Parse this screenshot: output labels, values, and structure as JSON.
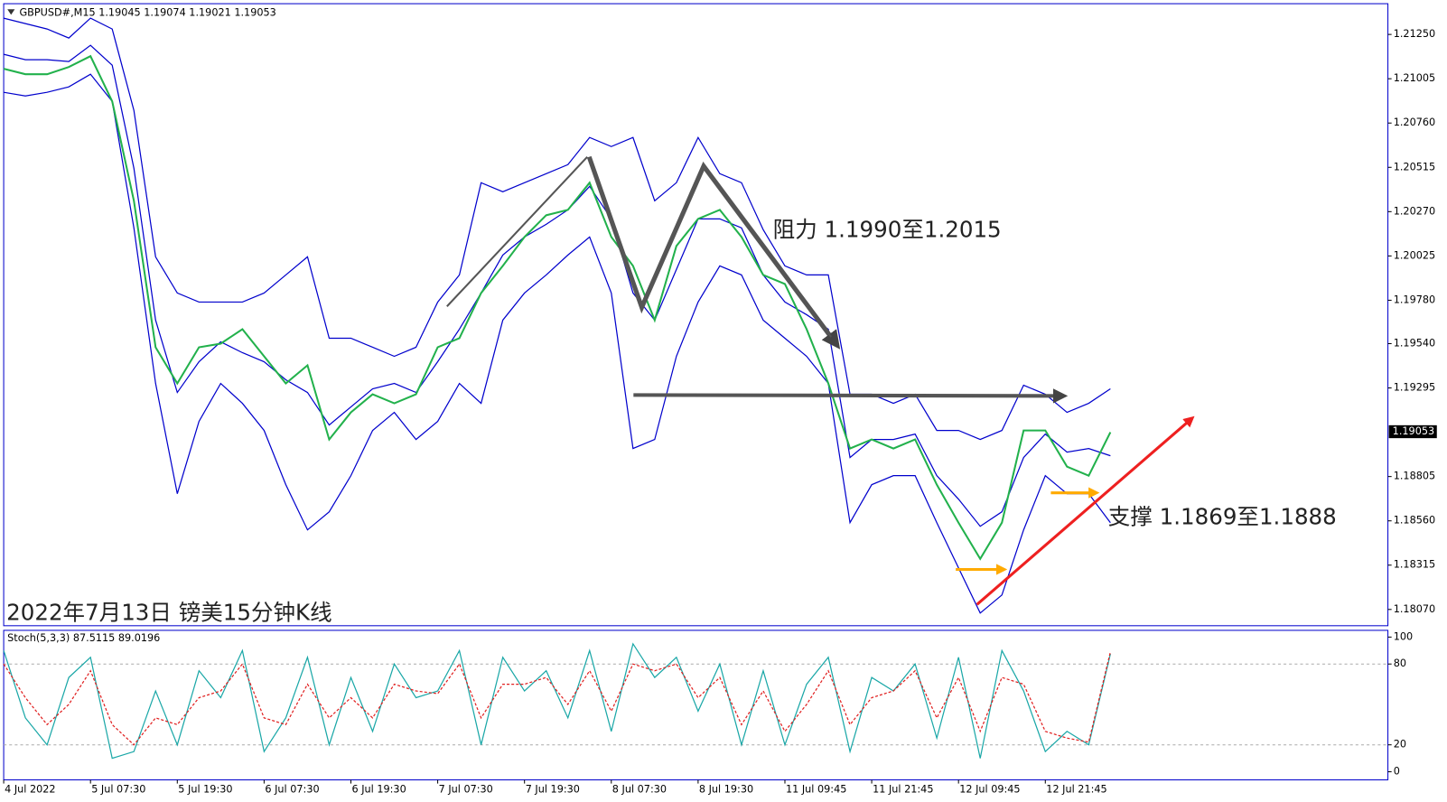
{
  "header": "GBPUSD#,M15  1.19045 1.19074 1.19021 1.19053",
  "annotations": [
    "阻力 1.1990至1.2015",
    "支撑 1.1869至1.1888",
    "2022年7月13日 镑美15分钟K线"
  ],
  "chart_data": [
    {
      "type": "line",
      "categories": [
        "4 Jul 2022",
        null,
        null,
        null,
        "5 Jul 07:30",
        null,
        null,
        null,
        "5 Jul 19:30",
        null,
        null,
        null,
        "6 Jul 07:30",
        null,
        null,
        null,
        "6 Jul 19:30",
        null,
        null,
        null,
        "7 Jul 07:30",
        null,
        null,
        null,
        "7 Jul 19:30",
        null,
        null,
        null,
        "8 Jul 07:30",
        null,
        null,
        null,
        "8 Jul 19:30",
        null,
        null,
        null,
        "11 Jul 09:45",
        null,
        null,
        null,
        "11 Jul 21:45",
        null,
        null,
        null,
        "12 Jul 09:45",
        null,
        null,
        null,
        "12 Jul 21:45",
        null,
        null,
        null
      ],
      "series": [
        {
          "color": "#0000cc",
          "values": [
            1.2134,
            1.2131,
            1.2128,
            1.2123,
            1.2134,
            1.2128,
            1.2083,
            1.2002,
            1.1982,
            1.1977,
            1.1977,
            1.1977,
            1.1982,
            1.1992,
            1.2002,
            1.1957,
            1.1957,
            1.1952,
            1.1947,
            1.1952,
            1.1977,
            1.1992,
            1.2043,
            1.2038,
            1.2043,
            1.2048,
            1.2053,
            1.2068,
            1.2063,
            1.2068,
            1.2033,
            1.2043,
            1.2068,
            1.2048,
            1.2043,
            1.2017,
            1.1997,
            1.1992,
            1.1992,
            1.1926,
            1.1926,
            1.1921,
            1.1926,
            1.1906,
            1.1906,
            1.1901,
            1.1906,
            1.1931,
            1.1926,
            1.1916,
            1.1921,
            1.1929
          ]
        },
        {
          "color": "#0000cc",
          "values": [
            1.2114,
            1.2111,
            1.2111,
            1.211,
            1.2119,
            1.2108,
            1.2051,
            1.1967,
            1.1927,
            1.1944,
            1.1955,
            1.1949,
            1.1944,
            1.1934,
            1.1927,
            1.1909,
            1.1919,
            1.1929,
            1.1932,
            1.1927,
            1.1944,
            1.1962,
            1.1982,
            1.2003,
            1.2013,
            1.202,
            1.2028,
            1.2041,
            1.2023,
            1.1982,
            1.1967,
            1.1995,
            1.2023,
            1.2023,
            1.2018,
            1.1992,
            1.1977,
            1.197,
            1.1962,
            1.1891,
            1.1901,
            1.1901,
            1.1904,
            1.1881,
            1.1868,
            1.1853,
            1.1861,
            1.1891,
            1.1904,
            1.1894,
            1.1896,
            1.1892
          ]
        },
        {
          "color": "#0000cc",
          "values": [
            1.2093,
            1.2091,
            1.2093,
            1.2096,
            1.2103,
            1.2088,
            1.2018,
            1.1932,
            1.1871,
            1.1911,
            1.1932,
            1.1921,
            1.1906,
            1.1876,
            1.1851,
            1.1861,
            1.1881,
            1.1906,
            1.1916,
            1.1901,
            1.1911,
            1.1932,
            1.1921,
            1.1967,
            1.1982,
            1.1992,
            1.2003,
            1.2013,
            1.1982,
            1.1896,
            1.1901,
            1.1947,
            1.1977,
            1.1997,
            1.1992,
            1.1967,
            1.1957,
            1.1947,
            1.1932,
            1.1855,
            1.1876,
            1.1881,
            1.1881,
            1.1855,
            1.183,
            1.1805,
            1.1815,
            1.1851,
            1.1881,
            1.1871,
            1.1871,
            1.1855
          ]
        },
        {
          "color": "#22b14c",
          "values": [
            1.2106,
            1.2103,
            1.2103,
            1.2107,
            1.2113,
            1.2088,
            1.2033,
            1.1952,
            1.1932,
            1.1952,
            1.1954,
            1.1962,
            1.1947,
            1.1932,
            1.1942,
            1.1901,
            1.1916,
            1.1926,
            1.1921,
            1.1926,
            1.1952,
            1.1957,
            1.1982,
            1.1997,
            1.2013,
            1.2025,
            1.2028,
            1.2043,
            1.2013,
            1.1997,
            1.1967,
            1.2008,
            1.2023,
            1.2028,
            1.2013,
            1.1992,
            1.1987,
            1.1962,
            1.1932,
            1.1896,
            1.1901,
            1.1896,
            1.1901,
            1.1876,
            1.1855,
            1.1835,
            1.1855,
            1.1906,
            1.1906,
            1.1886,
            1.1881,
            1.1905
          ]
        }
      ],
      "ylim": [
        1.1798,
        1.2142
      ],
      "yticks": [
        {
          "value": 1.2125,
          "label": "1.21250"
        },
        1.21005,
        {
          "value": 1.2076,
          "label": "1.20760"
        },
        1.20515,
        {
          "value": 1.2027,
          "label": "1.20270"
        },
        1.20025,
        {
          "value": 1.1978,
          "label": "1.19780"
        },
        {
          "value": 1.1954,
          "label": "1.19540"
        },
        1.19295,
        1.18805,
        {
          "value": 1.1856,
          "label": "1.18560"
        },
        1.18315,
        {
          "value": 1.1807,
          "label": "1.18070"
        }
      ],
      "current_price": 1.19053
    },
    {
      "type": "line",
      "title": "Stoch(5,3,3) 87.5115 89.0196",
      "series": [
        {
          "color": "#1aa7a7",
          "values": [
            90,
            40,
            20,
            70,
            85,
            10,
            15,
            60,
            20,
            75,
            55,
            90,
            15,
            40,
            85,
            20,
            70,
            30,
            80,
            55,
            60,
            90,
            20,
            85,
            60,
            75,
            40,
            90,
            30,
            95,
            70,
            85,
            45,
            80,
            20,
            75,
            20,
            65,
            85,
            15,
            70,
            60,
            80,
            25,
            85,
            10,
            90,
            60,
            15,
            30,
            20,
            87.5115
          ]
        },
        {
          "color": "#e02020",
          "dashed": true,
          "values": [
            80,
            55,
            35,
            50,
            75,
            35,
            20,
            40,
            35,
            55,
            60,
            80,
            40,
            35,
            65,
            40,
            55,
            40,
            65,
            60,
            58,
            80,
            40,
            65,
            65,
            70,
            50,
            75,
            45,
            80,
            75,
            80,
            55,
            70,
            35,
            60,
            30,
            50,
            75,
            35,
            55,
            60,
            75,
            40,
            70,
            30,
            70,
            65,
            30,
            25,
            22,
            89.0196
          ]
        }
      ],
      "ylim": [
        -6,
        105
      ],
      "yticks": [
        0,
        20,
        80,
        100
      ],
      "levels": [
        20,
        80
      ]
    }
  ]
}
